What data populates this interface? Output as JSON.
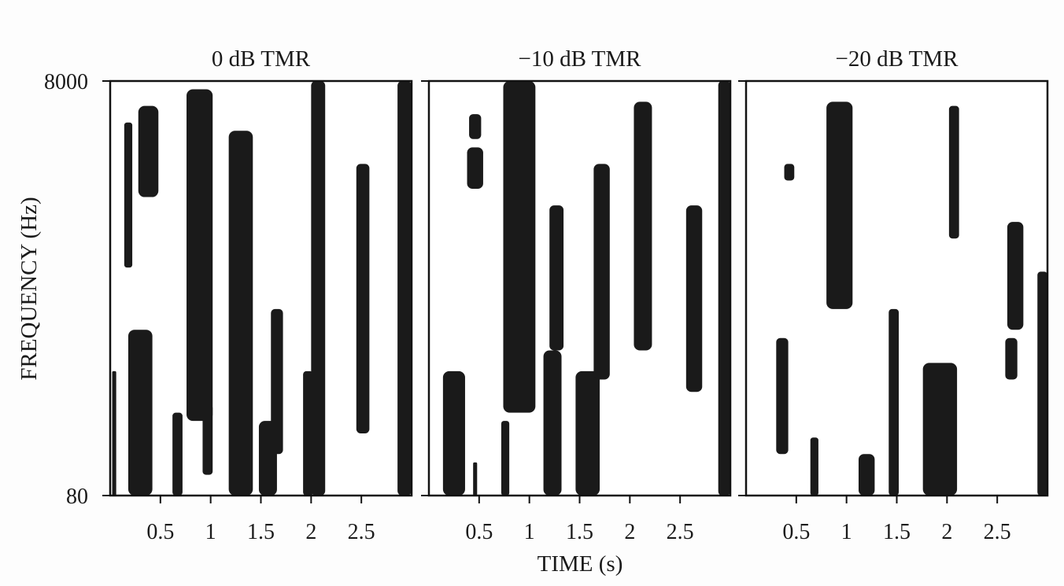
{
  "chart_data": {
    "type": "heatmap",
    "description_free": true,
    "xlabel": "TIME (s)",
    "ylabel": "FREQUENCY (Hz)",
    "y_ticks": [
      "8000",
      "80"
    ],
    "y_range": [
      80,
      8000
    ],
    "x_range": [
      0,
      3.0
    ],
    "x_ticks": [
      0.5,
      1,
      1.5,
      2,
      2.5
    ],
    "x_tick_labels": [
      "0.5",
      "1",
      "1.5",
      "2",
      "2.5"
    ],
    "colors": {
      "mask_on": "#1a1a1a",
      "mask_off": "#ffffff",
      "frame": "#111111"
    },
    "panels": [
      {
        "title": "0 dB TMR",
        "regions": [
          {
            "t": [
              0.02,
              0.06
            ],
            "f": [
              0.0,
              0.3
            ]
          },
          {
            "t": [
              0.18,
              0.42
            ],
            "f": [
              0.0,
              0.4
            ]
          },
          {
            "t": [
              0.62,
              0.72
            ],
            "f": [
              0.0,
              0.2
            ]
          },
          {
            "t": [
              0.76,
              1.02
            ],
            "f": [
              0.18,
              0.98
            ]
          },
          {
            "t": [
              0.92,
              1.02
            ],
            "f": [
              0.05,
              0.22
            ]
          },
          {
            "t": [
              1.18,
              1.42
            ],
            "f": [
              0.0,
              0.88
            ]
          },
          {
            "t": [
              1.48,
              1.66
            ],
            "f": [
              0.0,
              0.18
            ]
          },
          {
            "t": [
              1.6,
              1.72
            ],
            "f": [
              0.1,
              0.45
            ]
          },
          {
            "t": [
              1.92,
              2.02
            ],
            "f": [
              0.0,
              0.3
            ]
          },
          {
            "t": [
              2.0,
              2.14
            ],
            "f": [
              0.0,
              1.0
            ]
          },
          {
            "t": [
              2.45,
              2.58
            ],
            "f": [
              0.15,
              0.8
            ]
          },
          {
            "t": [
              2.86,
              3.0
            ],
            "f": [
              0.0,
              1.0
            ]
          },
          {
            "t": [
              0.14,
              0.22
            ],
            "f": [
              0.55,
              0.9
            ]
          },
          {
            "t": [
              0.28,
              0.48
            ],
            "f": [
              0.72,
              0.94
            ]
          }
        ]
      },
      {
        "title": "−10 dB TMR",
        "regions": [
          {
            "t": [
              0.14,
              0.36
            ],
            "f": [
              0.0,
              0.3
            ]
          },
          {
            "t": [
              0.44,
              0.48
            ],
            "f": [
              0.0,
              0.08
            ]
          },
          {
            "t": [
              0.72,
              0.8
            ],
            "f": [
              0.0,
              0.18
            ]
          },
          {
            "t": [
              0.74,
              1.06
            ],
            "f": [
              0.2,
              1.0
            ]
          },
          {
            "t": [
              1.14,
              1.32
            ],
            "f": [
              0.0,
              0.35
            ]
          },
          {
            "t": [
              1.2,
              1.34
            ],
            "f": [
              0.35,
              0.7
            ]
          },
          {
            "t": [
              1.46,
              1.7
            ],
            "f": [
              0.0,
              0.3
            ]
          },
          {
            "t": [
              1.64,
              1.8
            ],
            "f": [
              0.28,
              0.8
            ]
          },
          {
            "t": [
              2.04,
              2.22
            ],
            "f": [
              0.35,
              0.95
            ]
          },
          {
            "t": [
              2.56,
              2.72
            ],
            "f": [
              0.25,
              0.7
            ]
          },
          {
            "t": [
              2.88,
              3.0
            ],
            "f": [
              0.0,
              1.0
            ]
          },
          {
            "t": [
              0.38,
              0.54
            ],
            "f": [
              0.74,
              0.84
            ]
          },
          {
            "t": [
              0.4,
              0.52
            ],
            "f": [
              0.86,
              0.92
            ]
          }
        ]
      },
      {
        "title": "−20 dB TMR",
        "regions": [
          {
            "t": [
              0.3,
              0.42
            ],
            "f": [
              0.1,
              0.38
            ]
          },
          {
            "t": [
              0.64,
              0.72
            ],
            "f": [
              0.0,
              0.14
            ]
          },
          {
            "t": [
              0.8,
              1.06
            ],
            "f": [
              0.45,
              0.95
            ]
          },
          {
            "t": [
              1.12,
              1.28
            ],
            "f": [
              0.0,
              0.1
            ]
          },
          {
            "t": [
              1.42,
              1.52
            ],
            "f": [
              0.0,
              0.45
            ]
          },
          {
            "t": [
              1.76,
              2.1
            ],
            "f": [
              0.0,
              0.32
            ]
          },
          {
            "t": [
              2.02,
              2.12
            ],
            "f": [
              0.62,
              0.94
            ]
          },
          {
            "t": [
              2.58,
              2.7
            ],
            "f": [
              0.28,
              0.38
            ]
          },
          {
            "t": [
              2.6,
              2.76
            ],
            "f": [
              0.4,
              0.66
            ]
          },
          {
            "t": [
              2.9,
              3.0
            ],
            "f": [
              0.0,
              0.54
            ]
          },
          {
            "t": [
              0.38,
              0.48
            ],
            "f": [
              0.76,
              0.8
            ]
          }
        ]
      }
    ]
  }
}
